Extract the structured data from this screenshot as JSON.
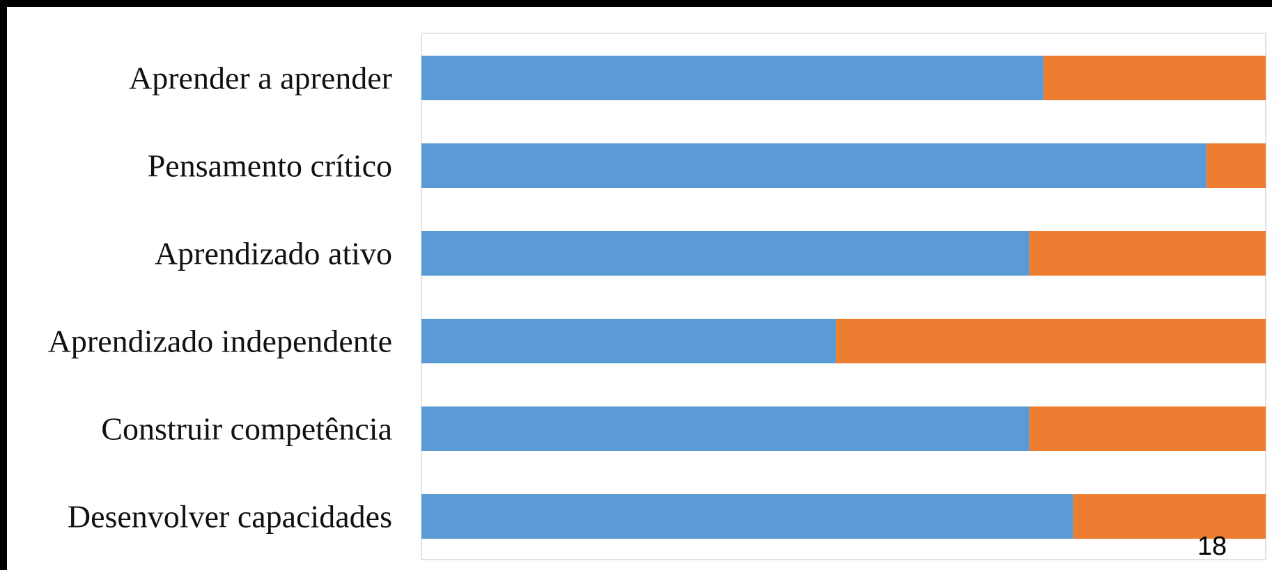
{
  "chart_data": {
    "type": "bar",
    "orientation": "horizontal",
    "stacked": true,
    "normalized": true,
    "categories": [
      "Aprender a aprender",
      "Pensamento crítico",
      "Aprendizado ativo",
      "Aprendizado independente",
      "Construir competência",
      "Desenvolver capacidades"
    ],
    "series": [
      {
        "color": "#5b9bd5",
        "values": [
          73.7,
          93.0,
          72.0,
          49.1,
          72.0,
          77.2
        ]
      },
      {
        "color": "#ed7d31",
        "values": [
          26.3,
          7.0,
          28.0,
          50.9,
          28.0,
          22.8
        ]
      }
    ],
    "xlim": [
      0,
      100
    ],
    "grid": false,
    "legend": "none",
    "title": "",
    "xlabel": "",
    "ylabel": ""
  },
  "page_number": "18"
}
